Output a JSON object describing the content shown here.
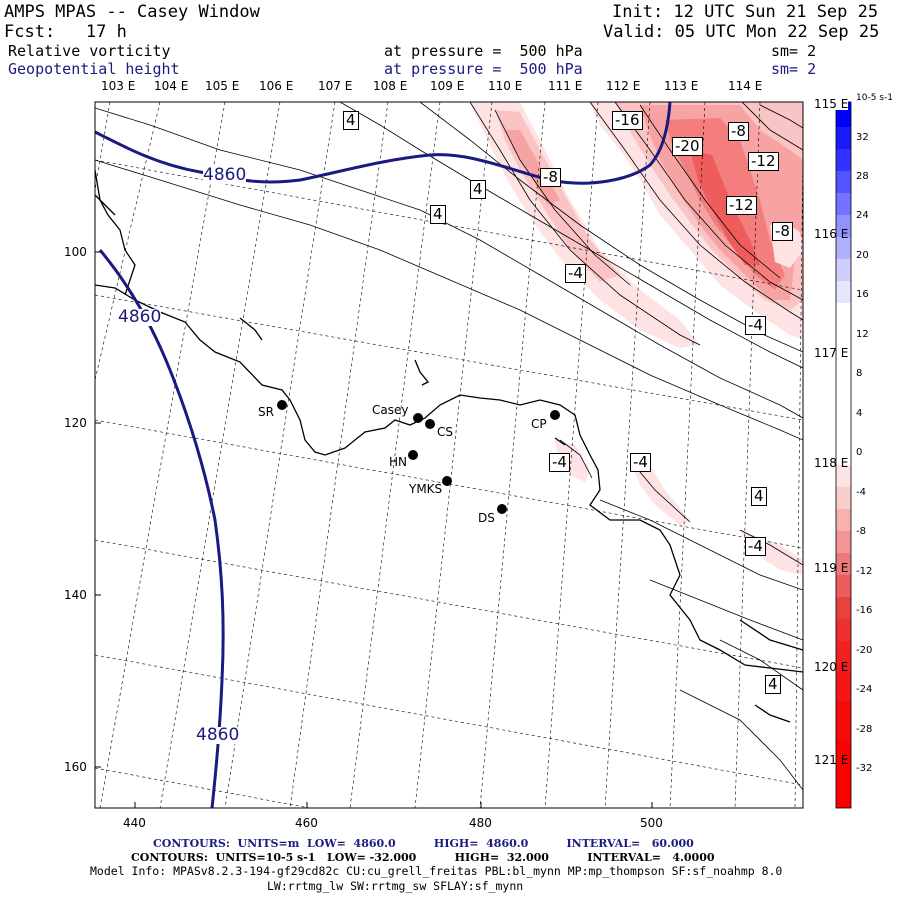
{
  "header": {
    "title": "AMPS MPAS -- Casey Window",
    "fcst": "Fcst:   17 h",
    "init": "Init: 12 UTC Sun 21 Sep 25",
    "valid": "Valid: 05 UTC Mon 22 Sep 25",
    "field1": {
      "name": "Relative vorticity",
      "level": "at pressure =  500 hPa",
      "sm": "sm= 2"
    },
    "field2": {
      "name": "Geopotential height",
      "level": "at pressure =  500 hPa",
      "sm": "sm= 2"
    }
  },
  "lon_top": [
    "103 E",
    "104 E",
    "105 E",
    "106 E",
    "107 E",
    "108 E",
    "109 E",
    "110 E",
    "111 E",
    "112 E",
    "113 E",
    "114 E"
  ],
  "lon_right": [
    "115 E",
    "116 E",
    "117 E",
    "118 E",
    "119 E",
    "120 E",
    "121 E"
  ],
  "x_ticks": [
    "440",
    "460",
    "480",
    "500"
  ],
  "y_ticks": [
    "100",
    "120",
    "140",
    "160"
  ],
  "stations": [
    {
      "label": "SR"
    },
    {
      "label": "Casey"
    },
    {
      "label": "CS"
    },
    {
      "label": "CP"
    },
    {
      "label": "HN"
    },
    {
      "label": "YMKS"
    },
    {
      "label": "DS"
    }
  ],
  "height_labels": [
    "4860",
    "4860",
    "4860"
  ],
  "vort_labels": [
    "4",
    "4",
    "4",
    "-4",
    "-16",
    "-20",
    "-8",
    "-12",
    "-12",
    "-8",
    "-4",
    "-4",
    "-4",
    "4",
    "-4",
    "4",
    "-8"
  ],
  "colorbar": {
    "unit": "10-5 s-1",
    "ticks": [
      "32",
      "28",
      "24",
      "20",
      "16",
      "12",
      "8",
      "4",
      "0",
      "-4",
      "-8",
      "-12",
      "-16",
      "-20",
      "-24",
      "-28",
      "-32"
    ]
  },
  "footer": {
    "line1": "CONTOURS:  UNITS=m  LOW=  4860.0          HIGH=  4860.0          INTERVAL=   60.000",
    "line2": "CONTOURS:  UNITS=10-5 s-1   LOW= -32.000          HIGH=  32.000          INTERVAL=   4.0000",
    "line3": "Model Info: MPASv8.2.3-194-gf29cd82c CU:cu_grell_freitas PBL:bl_mynn MP:mp_thompson SF:sf_noahmp 8.0",
    "line4": "LW:rrtmg_lw SW:rrtmg_sw SFLAY:sf_mynn"
  },
  "colors": {
    "height_contour": "#1a1a80",
    "positive_max": "#0000ff",
    "negative_max": "#ff0000"
  }
}
